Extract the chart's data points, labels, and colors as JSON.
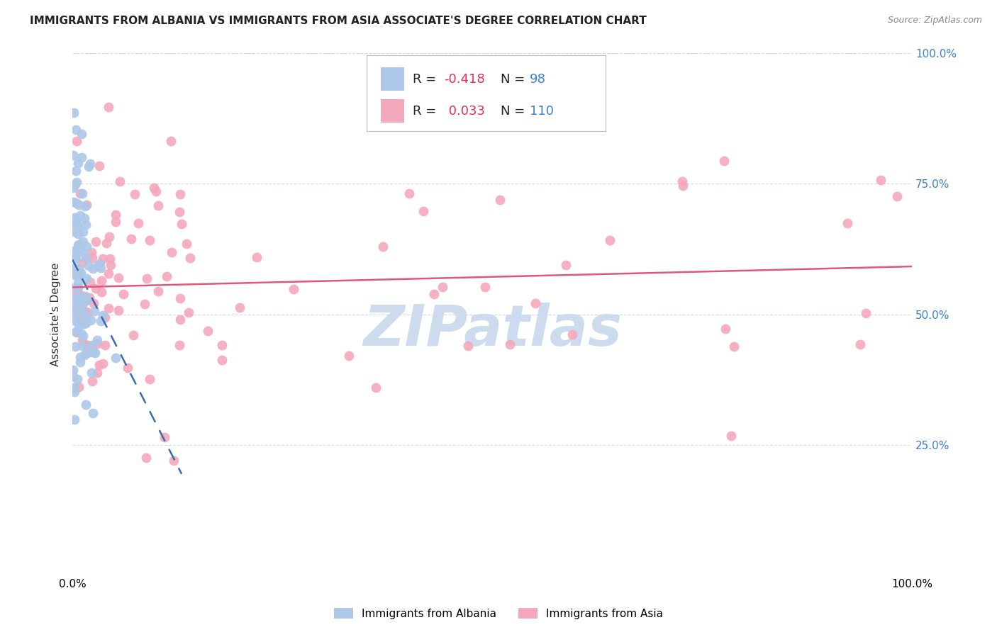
{
  "title": "IMMIGRANTS FROM ALBANIA VS IMMIGRANTS FROM ASIA ASSOCIATE'S DEGREE CORRELATION CHART",
  "source": "Source: ZipAtlas.com",
  "legend_label_albania": "Immigrants from Albania",
  "legend_label_asia": "Immigrants from Asia",
  "albania_color": "#adc8e8",
  "asia_color": "#f4a8bc",
  "albania_line_color": "#3a6ab0",
  "asia_line_color": "#e05878",
  "watermark": "ZIPatlas",
  "watermark_color": "#ccdcee",
  "background_color": "#ffffff",
  "grid_color": "#ccd8e8",
  "ylabel": "Associate's Degree",
  "r_albania": "-0.418",
  "n_albania": "98",
  "r_asia": "0.033",
  "n_asia": "110",
  "r_color": "#e03060",
  "n_color": "#3a80d0",
  "legend_text_color": "#222222",
  "right_tick_color": "#3a80d0",
  "source_color": "#888888",
  "title_fontsize": 11,
  "axis_fontsize": 11,
  "legend_fontsize": 13
}
